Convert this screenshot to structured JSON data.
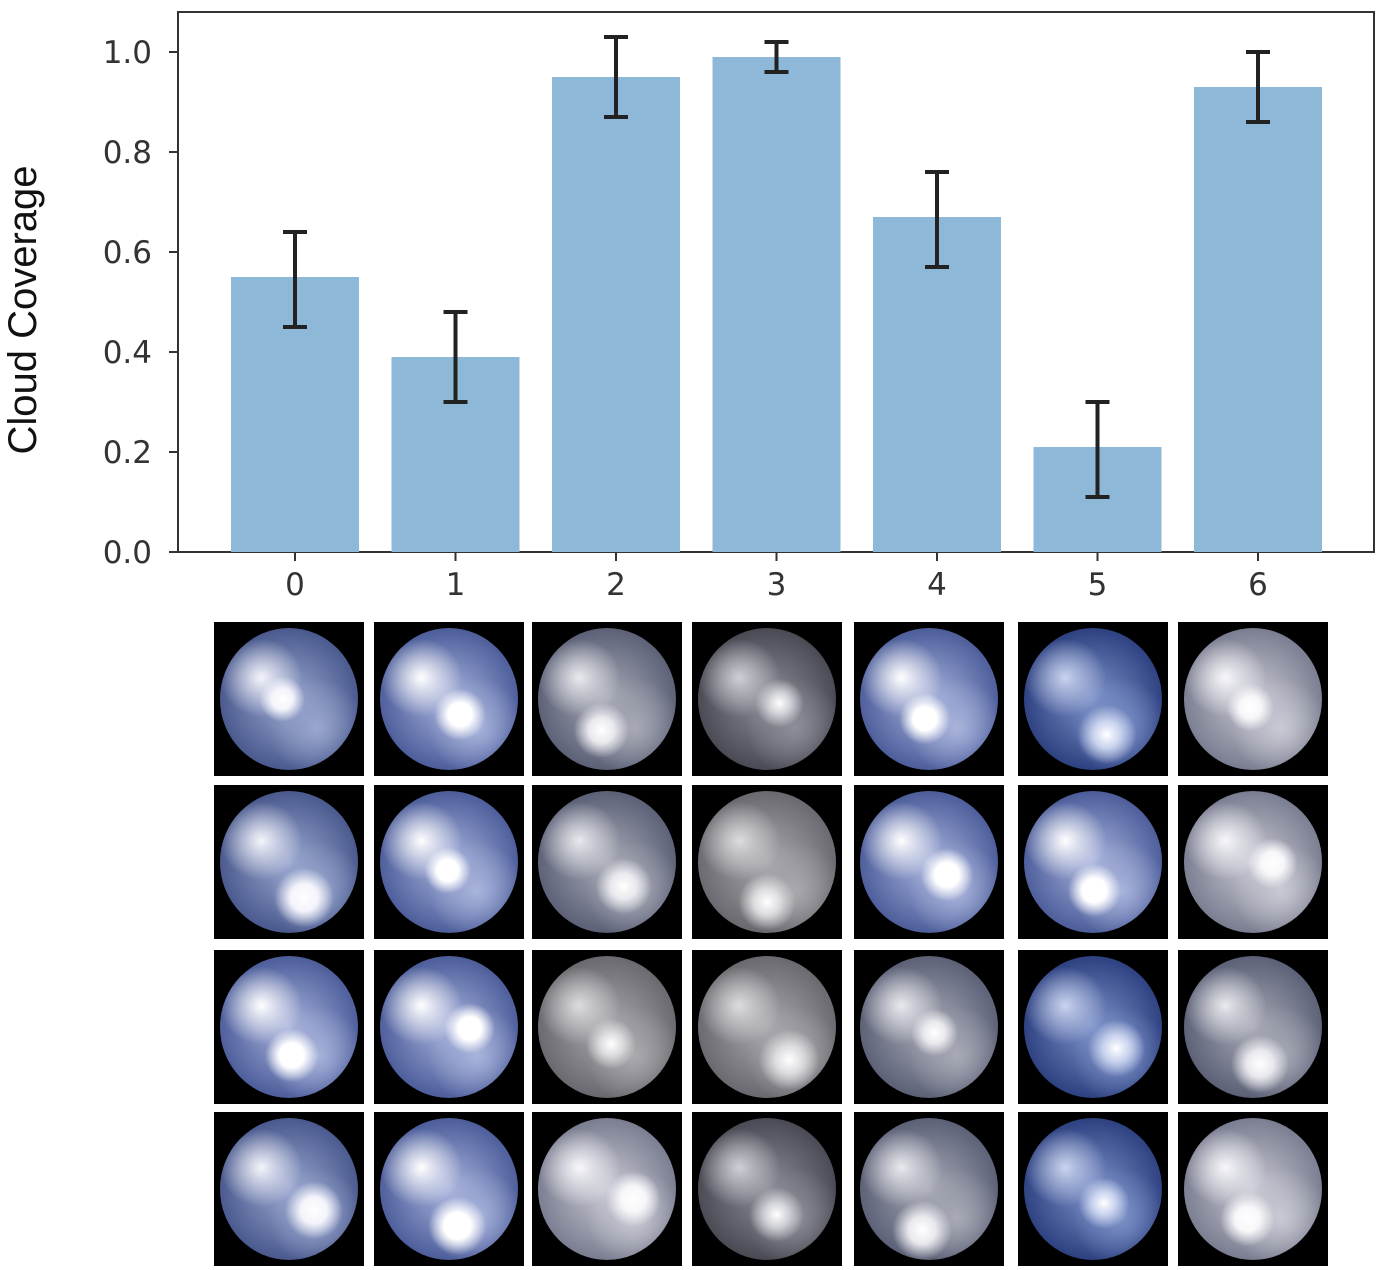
{
  "chart_data": {
    "type": "bar",
    "categories": [
      "0",
      "1",
      "2",
      "3",
      "4",
      "5",
      "6"
    ],
    "values": [
      0.55,
      0.39,
      0.95,
      0.99,
      0.67,
      0.21,
      0.93
    ],
    "error_low": [
      0.45,
      0.3,
      0.87,
      0.96,
      0.57,
      0.11,
      0.86
    ],
    "error_high": [
      0.64,
      0.48,
      1.03,
      1.02,
      0.76,
      0.3,
      1.0
    ],
    "ylabel": "Cloud Coverage",
    "xlabel": "",
    "ylim": [
      0,
      1.08
    ],
    "yticks": [
      "0.0",
      "0.2",
      "0.4",
      "0.6",
      "0.8",
      "1.0"
    ],
    "ytick_values": [
      0.0,
      0.2,
      0.4,
      0.6,
      0.8,
      1.0
    ],
    "bar_color": "#8db8d7",
    "errorbar_color": "#222222",
    "grid": false
  },
  "image_grid": {
    "rows": 4,
    "columns": 7,
    "description_hint": "",
    "column_styles": [
      [
        "clear-wispy",
        "broken-clouds",
        "overcast-broken",
        "dark-overcast",
        "broken-clouds",
        "clear-blue",
        "overcast-bright"
      ],
      [
        "clear-wispy",
        "broken-clouds",
        "overcast-broken",
        "fog-gray",
        "broken-clouds",
        "broken-clouds",
        "overcast-bright"
      ],
      [
        "broken-clouds",
        "broken-clouds",
        "fog-gray",
        "fog-gray",
        "overcast-broken",
        "clear-blue",
        "overcast-broken"
      ],
      [
        "clear-wispy",
        "broken-clouds",
        "overcast-bright",
        "dark-overcast",
        "overcast-broken",
        "clear-blue",
        "overcast-bright"
      ]
    ],
    "palette": {
      "clear-wispy": [
        "#f4f4fb",
        "#9aa7cf",
        "#4b5b8f",
        "#1c2135"
      ],
      "broken-clouds": [
        "#ffffff",
        "#a9b4dc",
        "#4e5f9c",
        "#1d2238"
      ],
      "overcast-broken": [
        "#e9e9ee",
        "#a8aab6",
        "#5d6278",
        "#1b1d26"
      ],
      "dark-overcast": [
        "#cfd0d6",
        "#8d8e98",
        "#4a4b55",
        "#121318"
      ],
      "clear-blue": [
        "#c9d3ee",
        "#7e92c9",
        "#2f4383",
        "#101422"
      ],
      "overcast-bright": [
        "#f7f7fa",
        "#c9cad4",
        "#7c7f92",
        "#24262f"
      ],
      "fog-gray": [
        "#dcdcdf",
        "#a9a9ae",
        "#6a6a70",
        "#1f1f22"
      ]
    }
  }
}
